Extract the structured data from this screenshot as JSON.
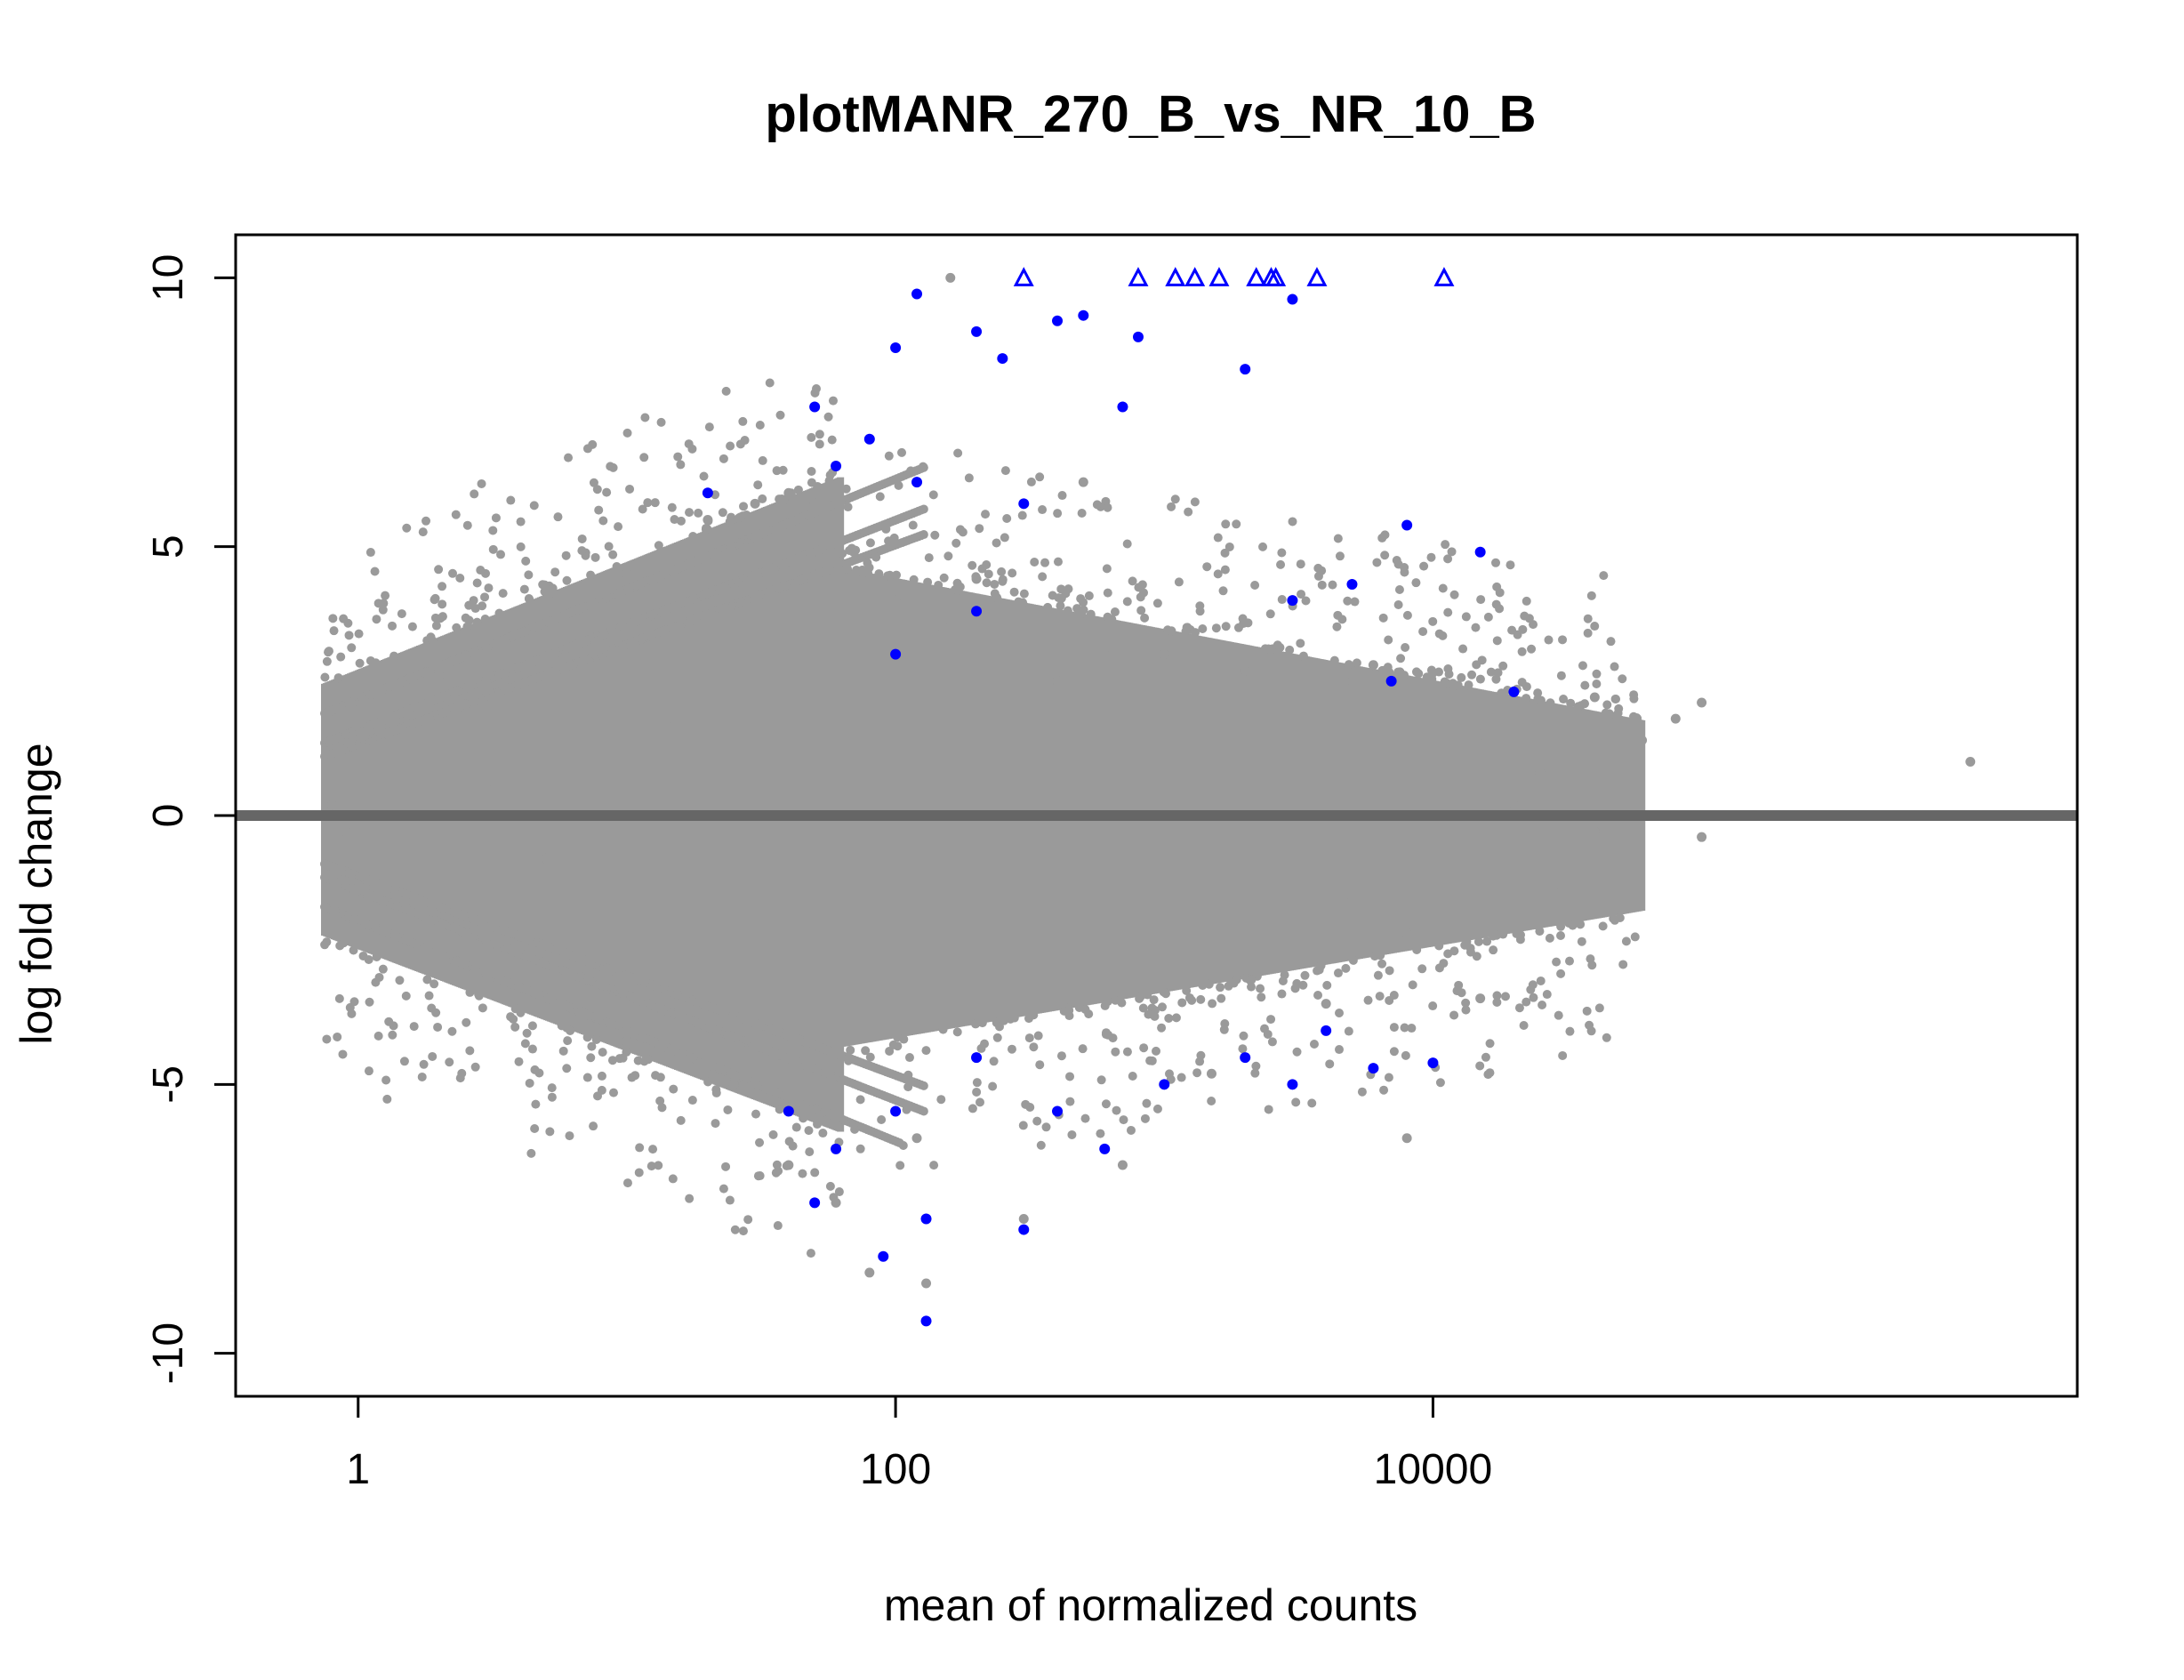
{
  "chart_data": {
    "type": "scatter",
    "title": "plotMANR_270_B_vs_NR_10_B",
    "xlabel": "mean of normalized counts",
    "ylabel": "log fold change",
    "x_scale": "log",
    "xlim": [
      0.35,
      2500000
    ],
    "ylim": [
      -10.8,
      10.8
    ],
    "x_ticks": [
      1,
      100,
      10000
    ],
    "x_tick_labels": [
      "1",
      "100",
      "10000"
    ],
    "y_ticks": [
      -10,
      -5,
      0,
      5,
      10
    ],
    "y_tick_labels": [
      "-10",
      "-5",
      "0",
      "5",
      "10"
    ],
    "reference_line": {
      "y": 0,
      "color": "#666666"
    },
    "grid": false,
    "legend": "none",
    "colors": {
      "not_significant": "#9a9a9a",
      "significant": "#0000ff"
    },
    "series": [
      {
        "significant": false,
        "marker": "point",
        "points": [
          [
            0.8,
            0.2
          ],
          [
            0.9,
            -0.3
          ],
          [
            1.2,
            2.0
          ],
          [
            1.5,
            -1.6
          ],
          [
            2.0,
            2.6
          ],
          [
            2.5,
            -2.2
          ],
          [
            3,
            0.5
          ],
          [
            5,
            -0.8
          ],
          [
            10,
            4.5
          ],
          [
            10,
            -4.2
          ],
          [
            15,
            1.8
          ],
          [
            20,
            5.5
          ],
          [
            25,
            -5.0
          ],
          [
            30,
            5.8
          ],
          [
            40,
            6.0
          ],
          [
            40,
            -6.5
          ],
          [
            50,
            5.8
          ],
          [
            60,
            -7.2
          ],
          [
            70,
            4.9
          ],
          [
            100,
            4.0
          ],
          [
            120,
            -6.0
          ],
          [
            150,
            3.5
          ],
          [
            200,
            4.4
          ],
          [
            300,
            5.8
          ],
          [
            300,
            -7.5
          ],
          [
            400,
            2.5
          ],
          [
            500,
            6.2
          ],
          [
            600,
            3.0
          ],
          [
            700,
            -6.5
          ],
          [
            1000,
            3.0
          ],
          [
            1500,
            -4.8
          ],
          [
            2000,
            2.7
          ],
          [
            3000,
            4.0
          ],
          [
            4000,
            -3.5
          ],
          [
            5000,
            2.5
          ],
          [
            6000,
            2.8
          ],
          [
            8000,
            -2.2
          ],
          [
            10000,
            2.0
          ],
          [
            15000,
            1.5
          ],
          [
            20000,
            2.3
          ],
          [
            25000,
            0.8
          ],
          [
            30000,
            -1.3
          ],
          [
            40000,
            2.2
          ],
          [
            60000,
            1.4
          ],
          [
            80000,
            1.8
          ],
          [
            100000,
            -0.4
          ],
          [
            100000,
            2.1
          ],
          [
            1000000,
            1.0
          ],
          [
            15000,
            -3.4
          ],
          [
            8000,
            -6.0
          ],
          [
            160,
            10
          ],
          [
            80,
            -8.5
          ],
          [
            130,
            -8.7
          ],
          [
            20000,
            0.2
          ],
          [
            40000,
            -0.3
          ],
          [
            5000,
            -1.5
          ]
        ]
      },
      {
        "significant": true,
        "marker": "point",
        "points": [
          [
            20,
            6.0
          ],
          [
            50,
            7.6
          ],
          [
            100,
            8.7
          ],
          [
            120,
            9.7
          ],
          [
            60,
            6.5
          ],
          [
            80,
            7.0
          ],
          [
            120,
            6.2
          ],
          [
            200,
            9.0
          ],
          [
            250,
            8.5
          ],
          [
            400,
            9.2
          ],
          [
            500,
            9.3
          ],
          [
            700,
            7.6
          ],
          [
            800,
            8.9
          ],
          [
            3000,
            9.6
          ],
          [
            2000,
            8.3
          ],
          [
            8000,
            5.4
          ],
          [
            15000,
            4.9
          ],
          [
            5000,
            4.3
          ],
          [
            3000,
            4.0
          ],
          [
            7000,
            2.5
          ],
          [
            20000,
            2.3
          ],
          [
            300,
            5.8
          ],
          [
            200,
            3.8
          ],
          [
            100,
            3.0
          ],
          [
            60,
            -6.2
          ],
          [
            40,
            -5.5
          ],
          [
            100,
            -5.5
          ],
          [
            130,
            -7.5
          ],
          [
            200,
            -4.5
          ],
          [
            300,
            -7.7
          ],
          [
            400,
            -5.5
          ],
          [
            600,
            -6.2
          ],
          [
            1000,
            -5.0
          ],
          [
            2000,
            -4.5
          ],
          [
            3000,
            -5.0
          ],
          [
            4000,
            -4.0
          ],
          [
            6000,
            -4.7
          ],
          [
            10000,
            -4.6
          ],
          [
            130,
            -9.4
          ],
          [
            90,
            -8.2
          ],
          [
            50,
            -7.2
          ]
        ]
      },
      {
        "significant": true,
        "marker": "triangle",
        "points": [
          [
            300,
            10
          ],
          [
            800,
            10
          ],
          [
            1100,
            10
          ],
          [
            1300,
            10
          ],
          [
            1600,
            10
          ],
          [
            2200,
            10
          ],
          [
            2500,
            10
          ],
          [
            2600,
            10
          ],
          [
            3700,
            10
          ],
          [
            11000,
            10
          ]
        ]
      }
    ]
  }
}
